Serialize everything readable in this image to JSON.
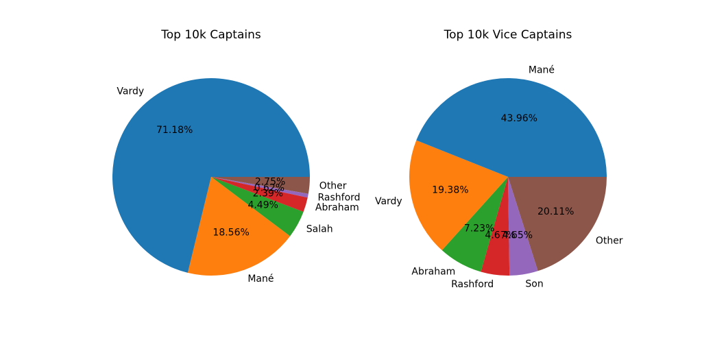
{
  "chart_data": [
    {
      "type": "pie",
      "title": "Top 10k Captains",
      "categories": [
        "Vardy",
        "Mané",
        "Salah",
        "Abraham",
        "Rashford",
        "Other"
      ],
      "values": [
        71.18,
        18.56,
        4.49,
        2.39,
        0.62,
        2.75
      ],
      "pct_labels": [
        "71.18%",
        "18.56%",
        "4.49%",
        "2.39%",
        "0.62%",
        "2.75%"
      ],
      "colors": [
        "#1f77b4",
        "#ff7f0e",
        "#2ca02c",
        "#d62728",
        "#9467bd",
        "#8c564b"
      ],
      "start_angle": 0,
      "direction": "counterclockwise"
    },
    {
      "type": "pie",
      "title": "Top 10k Vice Captains",
      "categories": [
        "Mané",
        "Vardy",
        "Abraham",
        "Rashford",
        "Son",
        "Other"
      ],
      "values": [
        43.96,
        19.38,
        7.23,
        4.67,
        4.65,
        20.11
      ],
      "pct_labels": [
        "43.96%",
        "19.38%",
        "7.23%",
        "4.67%",
        "4.65%",
        "20.11%"
      ],
      "colors": [
        "#1f77b4",
        "#ff7f0e",
        "#2ca02c",
        "#d62728",
        "#9467bd",
        "#8c564b"
      ],
      "start_angle": 0,
      "direction": "counterclockwise"
    }
  ]
}
